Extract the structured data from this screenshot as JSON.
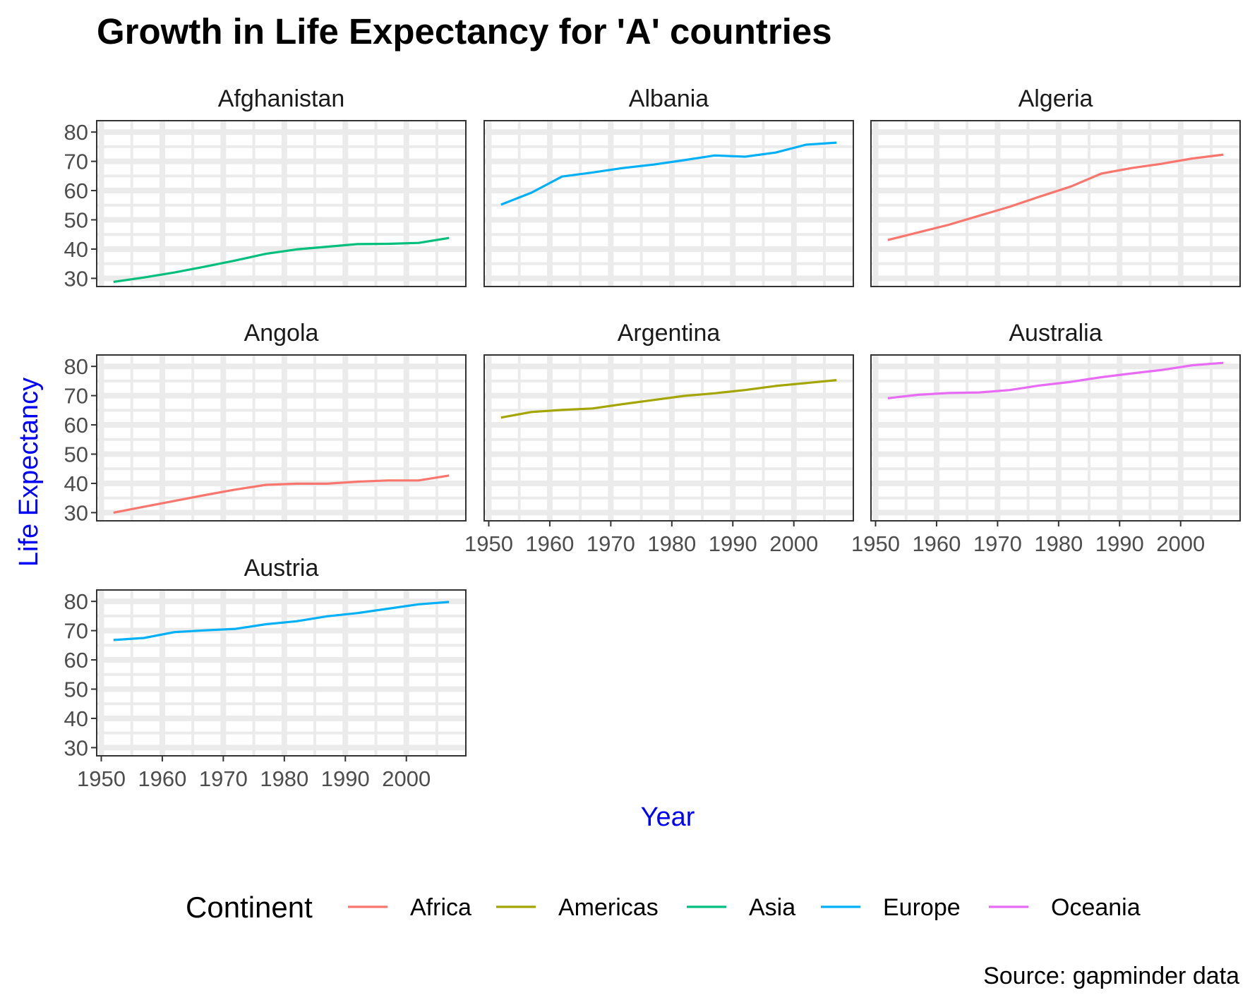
{
  "title": "Growth in Life Expectancy for 'A' countries",
  "caption": "Source: gapminder data",
  "chart_data": {
    "type": "line",
    "title": "Growth in Life Expectancy for 'A' countries",
    "xlabel": "Year",
    "ylabel": "Life Expectancy",
    "xlim": [
      1949.25,
      2009.75
    ],
    "ylim": [
      27.2,
      83.9
    ],
    "x_ticks": [
      1950,
      1960,
      1970,
      1980,
      1990,
      2000
    ],
    "y_ticks": [
      30,
      40,
      50,
      60,
      70,
      80
    ],
    "grid": true,
    "legend": {
      "title": "Continent",
      "placement": "bottom",
      "entries": [
        {
          "name": "Africa",
          "color": "#F8766D"
        },
        {
          "name": "Americas",
          "color": "#A3A500"
        },
        {
          "name": "Asia",
          "color": "#00BF7D"
        },
        {
          "name": "Europe",
          "color": "#00B0F6"
        },
        {
          "name": "Oceania",
          "color": "#E76BF3"
        }
      ]
    },
    "x": [
      1952,
      1957,
      1962,
      1967,
      1972,
      1977,
      1982,
      1987,
      1992,
      1997,
      2002,
      2007
    ],
    "panels": [
      {
        "name": "Afghanistan",
        "continent": "Asia",
        "values": [
          28.8,
          30.3,
          32.0,
          34.0,
          36.1,
          38.4,
          39.9,
          40.8,
          41.7,
          41.8,
          42.1,
          43.8
        ]
      },
      {
        "name": "Albania",
        "continent": "Europe",
        "values": [
          55.2,
          59.3,
          64.8,
          66.2,
          67.7,
          68.9,
          70.4,
          72.0,
          71.6,
          73.0,
          75.7,
          76.4
        ]
      },
      {
        "name": "Algeria",
        "continent": "Africa",
        "values": [
          43.1,
          45.7,
          48.3,
          51.4,
          54.5,
          58.0,
          61.4,
          65.8,
          67.7,
          69.2,
          71.0,
          72.3
        ]
      },
      {
        "name": "Angola",
        "continent": "Africa",
        "values": [
          30.0,
          32.0,
          34.0,
          36.0,
          37.9,
          39.5,
          39.9,
          39.9,
          40.6,
          41.0,
          41.0,
          42.7
        ]
      },
      {
        "name": "Argentina",
        "continent": "Americas",
        "values": [
          62.5,
          64.4,
          65.1,
          65.6,
          67.1,
          68.5,
          69.9,
          70.8,
          71.9,
          73.3,
          74.3,
          75.3
        ]
      },
      {
        "name": "Australia",
        "continent": "Oceania",
        "values": [
          69.1,
          70.3,
          70.9,
          71.1,
          71.9,
          73.5,
          74.7,
          76.3,
          77.6,
          78.8,
          80.4,
          81.2
        ]
      },
      {
        "name": "Austria",
        "continent": "Europe",
        "values": [
          66.8,
          67.5,
          69.5,
          70.1,
          70.6,
          72.2,
          73.2,
          74.9,
          76.0,
          77.5,
          79.0,
          79.8
        ]
      }
    ]
  }
}
